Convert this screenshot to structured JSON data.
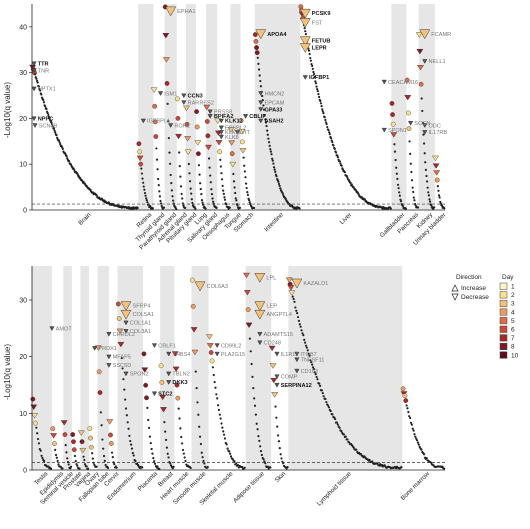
{
  "chart_data": [
    {
      "type": "scatter",
      "panel": "top",
      "ylabel": "-Log10(q value)",
      "yticks": [
        0,
        10,
        20,
        30,
        40
      ],
      "ylim": [
        0,
        45
      ],
      "threshold": 1.3,
      "tissues": [
        {
          "name": "Brain",
          "shaded": false,
          "start": 0,
          "end": 105,
          "max": 31
        },
        {
          "name": "Retina",
          "shaded": true,
          "start": 105,
          "end": 120,
          "max": 14
        },
        {
          "name": "Thyroid gland",
          "shaded": false,
          "start": 120,
          "end": 131,
          "max": 26
        },
        {
          "name": "Parathyroid gland",
          "shaded": true,
          "start": 131,
          "end": 143,
          "max": 44
        },
        {
          "name": "Adrenal gland",
          "shaded": false,
          "start": 143,
          "end": 152,
          "max": 24
        },
        {
          "name": "Pituitary gland",
          "shaded": true,
          "start": 152,
          "end": 162,
          "max": 22
        },
        {
          "name": "Lung",
          "shaded": false,
          "start": 162,
          "end": 172,
          "max": 21
        },
        {
          "name": "Salivary gland",
          "shaded": true,
          "start": 172,
          "end": 183,
          "max": 22
        },
        {
          "name": "Oesophagus",
          "shaded": false,
          "start": 183,
          "end": 196,
          "max": 19
        },
        {
          "name": "Tongue",
          "shaded": true,
          "start": 196,
          "end": 206,
          "max": 17
        },
        {
          "name": "Stomach",
          "shaded": false,
          "start": 206,
          "end": 220,
          "max": 19
        },
        {
          "name": "Intestine",
          "shaded": true,
          "start": 220,
          "end": 265,
          "max": 38
        },
        {
          "name": "Liver",
          "shaded": false,
          "start": 265,
          "end": 355,
          "max": 44
        },
        {
          "name": "Gallbladder",
          "shaded": true,
          "start": 355,
          "end": 370,
          "max": 23
        },
        {
          "name": "Pancreas",
          "shaded": false,
          "start": 370,
          "end": 382,
          "max": 28
        },
        {
          "name": "Kidney",
          "shaded": true,
          "start": 382,
          "end": 398,
          "max": 38
        },
        {
          "name": "Urinary bladder",
          "shaded": false,
          "start": 398,
          "end": 408,
          "max": 11
        }
      ],
      "labels": [
        {
          "text": "EPHA1",
          "x": 137,
          "y": 43.5,
          "dark": false
        },
        {
          "text": "TTR",
          "x": 2,
          "y": 32,
          "dark": true
        },
        {
          "text": "TNR",
          "x": 2,
          "y": 30.5,
          "dark": false
        },
        {
          "text": "NPTX1",
          "x": 2,
          "y": 26.5,
          "dark": false
        },
        {
          "text": "NPPC",
          "x": 2,
          "y": 20,
          "dark": true
        },
        {
          "text": "SCN4B",
          "x": 3,
          "y": 18.5,
          "dark": false
        },
        {
          "text": "ISM1",
          "x": 127,
          "y": 25.5,
          "dark": false
        },
        {
          "text": "IGFBPL1",
          "x": 110,
          "y": 19.5,
          "dark": false
        },
        {
          "text": "ROR1",
          "x": 137,
          "y": 18.5,
          "dark": false
        },
        {
          "text": "CCN3",
          "x": 150,
          "y": 25,
          "dark": true
        },
        {
          "text": "RARRES2",
          "x": 150,
          "y": 23.5,
          "dark": false
        },
        {
          "text": "PRSS8",
          "x": 176,
          "y": 21.5,
          "dark": false
        },
        {
          "text": "BPIFA2",
          "x": 176,
          "y": 20.5,
          "dark": true
        },
        {
          "text": "KLK13",
          "x": 187,
          "y": 19.5,
          "dark": true
        },
        {
          "text": "EPSBL2",
          "x": 187,
          "y": 18,
          "dark": false
        },
        {
          "text": "KLK11",
          "x": 187,
          "y": 17,
          "dark": false
        },
        {
          "text": "KLK8",
          "x": 187,
          "y": 16,
          "dark": false
        },
        {
          "text": "VIT",
          "x": 203,
          "y": 17,
          "dark": false
        },
        {
          "text": "CBLIF",
          "x": 211,
          "y": 20.5,
          "dark": true
        },
        {
          "text": "APOA4",
          "x": 226,
          "y": 38.5,
          "dark": true
        },
        {
          "text": "HMCN2",
          "x": 226,
          "y": 25.5,
          "dark": false
        },
        {
          "text": "EPCAM",
          "x": 226,
          "y": 23.5,
          "dark": false
        },
        {
          "text": "GPA33",
          "x": 226,
          "y": 22,
          "dark": true
        },
        {
          "text": "ASAH2",
          "x": 226,
          "y": 19.5,
          "dark": true
        },
        {
          "text": "PCSK9",
          "x": 270,
          "y": 43,
          "dark": true
        },
        {
          "text": "FST",
          "x": 270,
          "y": 41,
          "dark": false
        },
        {
          "text": "FETUB",
          "x": 270,
          "y": 37,
          "dark": true
        },
        {
          "text": "LEPR",
          "x": 270,
          "y": 35.5,
          "dark": true
        },
        {
          "text": "IGFBP1",
          "x": 270,
          "y": 29,
          "dark": true
        },
        {
          "text": "CEACAM16",
          "x": 348,
          "y": 28,
          "dark": false
        },
        {
          "text": "SPON1",
          "x": 348,
          "y": 17.5,
          "dark": false
        },
        {
          "text": "SCGN",
          "x": 374,
          "y": 19,
          "dark": false
        },
        {
          "text": "FCAMR",
          "x": 388,
          "y": 38.5,
          "dark": false
        },
        {
          "text": "NELL1",
          "x": 388,
          "y": 32.5,
          "dark": false
        },
        {
          "text": "ODC",
          "x": 388,
          "y": 18.5,
          "dark": false
        },
        {
          "text": "IL17RB",
          "x": 388,
          "y": 17,
          "dark": false
        }
      ]
    },
    {
      "type": "scatter",
      "panel": "bottom",
      "ylabel": "-Log10(q value)",
      "yticks": [
        0,
        10,
        20,
        30
      ],
      "ylim": [
        0,
        36
      ],
      "threshold": 1.3,
      "tissues": [
        {
          "name": "Testis",
          "shaded": true,
          "start": 0,
          "end": 14,
          "max": 12
        },
        {
          "name": "Epididymis",
          "shaded": false,
          "start": 14,
          "end": 22,
          "max": 7
        },
        {
          "name": "Seminal vesicle",
          "shaded": true,
          "start": 22,
          "end": 28,
          "max": 8
        },
        {
          "name": "Prostate",
          "shaded": false,
          "start": 28,
          "end": 34,
          "max": 6
        },
        {
          "name": "Vagina",
          "shaded": true,
          "start": 34,
          "end": 40,
          "max": 6
        },
        {
          "name": "Ovary",
          "shaded": false,
          "start": 40,
          "end": 46,
          "max": 7
        },
        {
          "name": "Fallopian tube",
          "shaded": true,
          "start": 46,
          "end": 54,
          "max": 21
        },
        {
          "name": "Cervix",
          "shaded": false,
          "start": 54,
          "end": 60,
          "max": 8
        },
        {
          "name": "Endometrium",
          "shaded": true,
          "start": 60,
          "end": 78,
          "max": 29
        },
        {
          "name": "Placenta",
          "shaded": false,
          "start": 78,
          "end": 90,
          "max": 20
        },
        {
          "name": "Breast",
          "shaded": true,
          "start": 90,
          "end": 100,
          "max": 18
        },
        {
          "name": "Heart muscle",
          "shaded": false,
          "start": 100,
          "end": 112,
          "max": 20
        },
        {
          "name": "Smooth muscle",
          "shaded": true,
          "start": 112,
          "end": 124,
          "max": 33
        },
        {
          "name": "Skeletal muscle",
          "shaded": false,
          "start": 124,
          "end": 150,
          "max": 23
        },
        {
          "name": "Adipose tissue",
          "shaded": true,
          "start": 150,
          "end": 168,
          "max": 34
        },
        {
          "name": "Skin",
          "shaded": false,
          "start": 168,
          "end": 180,
          "max": 21
        },
        {
          "name": "Lymphoid tissue",
          "shaded": true,
          "start": 180,
          "end": 260,
          "max": 33
        },
        {
          "name": "Bone marrow",
          "shaded": false,
          "start": 260,
          "end": 290,
          "max": 14
        }
      ],
      "labels": [
        {
          "text": "AMOT",
          "x": 14,
          "y": 25,
          "dark": false
        },
        {
          "text": "PRDX1",
          "x": 44,
          "y": 21.5,
          "dark": false
        },
        {
          "text": "CHRDL2",
          "x": 54,
          "y": 24,
          "dark": false
        },
        {
          "text": "MFAP5",
          "x": 54,
          "y": 20,
          "dark": false
        },
        {
          "text": "SSC5D",
          "x": 54,
          "y": 18.5,
          "dark": false
        },
        {
          "text": "SFRP4",
          "x": 66,
          "y": 29,
          "dark": false
        },
        {
          "text": "COL5A1",
          "x": 66,
          "y": 27.5,
          "dark": false
        },
        {
          "text": "COL1A1",
          "x": 66,
          "y": 26,
          "dark": false
        },
        {
          "text": "COL3A1",
          "x": 66,
          "y": 24.5,
          "dark": false
        },
        {
          "text": "SPON2",
          "x": 66,
          "y": 17,
          "dark": false
        },
        {
          "text": "CRLF1",
          "x": 86,
          "y": 22,
          "dark": false
        },
        {
          "text": "STC2",
          "x": 86,
          "y": 13.5,
          "dark": true
        },
        {
          "text": "THBS4",
          "x": 96,
          "y": 20.5,
          "dark": false
        },
        {
          "text": "TBLN2",
          "x": 96,
          "y": 17,
          "dark": false
        },
        {
          "text": "DKK3",
          "x": 96,
          "y": 15.5,
          "dark": true
        },
        {
          "text": "COL6A3",
          "x": 118,
          "y": 32.5,
          "dark": false
        },
        {
          "text": "CD99L2",
          "x": 130,
          "y": 22,
          "dark": false
        },
        {
          "text": "PLA2G15",
          "x": 130,
          "y": 20.5,
          "dark": false
        },
        {
          "text": "LPL",
          "x": 160,
          "y": 34,
          "dark": false
        },
        {
          "text": "LEP",
          "x": 160,
          "y": 29,
          "dark": false
        },
        {
          "text": "ANGPTL4",
          "x": 160,
          "y": 27.5,
          "dark": false
        },
        {
          "text": "ADAMTS15",
          "x": 160,
          "y": 24,
          "dark": false
        },
        {
          "text": "CD248",
          "x": 160,
          "y": 22.5,
          "dark": false
        },
        {
          "text": "IL1RL2",
          "x": 172,
          "y": 20.5,
          "dark": false
        },
        {
          "text": "COMP",
          "x": 172,
          "y": 16.5,
          "dark": false
        },
        {
          "text": "SERPINA12",
          "x": 172,
          "y": 15,
          "dark": true
        },
        {
          "text": "KAZALD1",
          "x": 186,
          "y": 33,
          "dark": false
        },
        {
          "text": "ITGB7",
          "x": 186,
          "y": 20.5,
          "dark": false
        },
        {
          "text": "TNFSF11",
          "x": 186,
          "y": 19.5,
          "dark": false
        },
        {
          "text": "CD163",
          "x": 186,
          "y": 17.5,
          "dark": false
        }
      ]
    }
  ],
  "legend": {
    "direction_title": "Direction",
    "increase_label": "Increase",
    "decrease_label": "Decrease",
    "day_title": "Day",
    "days": [
      "1",
      "2",
      "3",
      "4",
      "5",
      "6",
      "7",
      "8",
      "10"
    ],
    "day_colors": [
      "#fdf3c6",
      "#fbe08e",
      "#f6c27a",
      "#ec9a60",
      "#dc6e48",
      "#c74a38",
      "#a8282a",
      "#801a22",
      "#5a0f1a"
    ]
  }
}
